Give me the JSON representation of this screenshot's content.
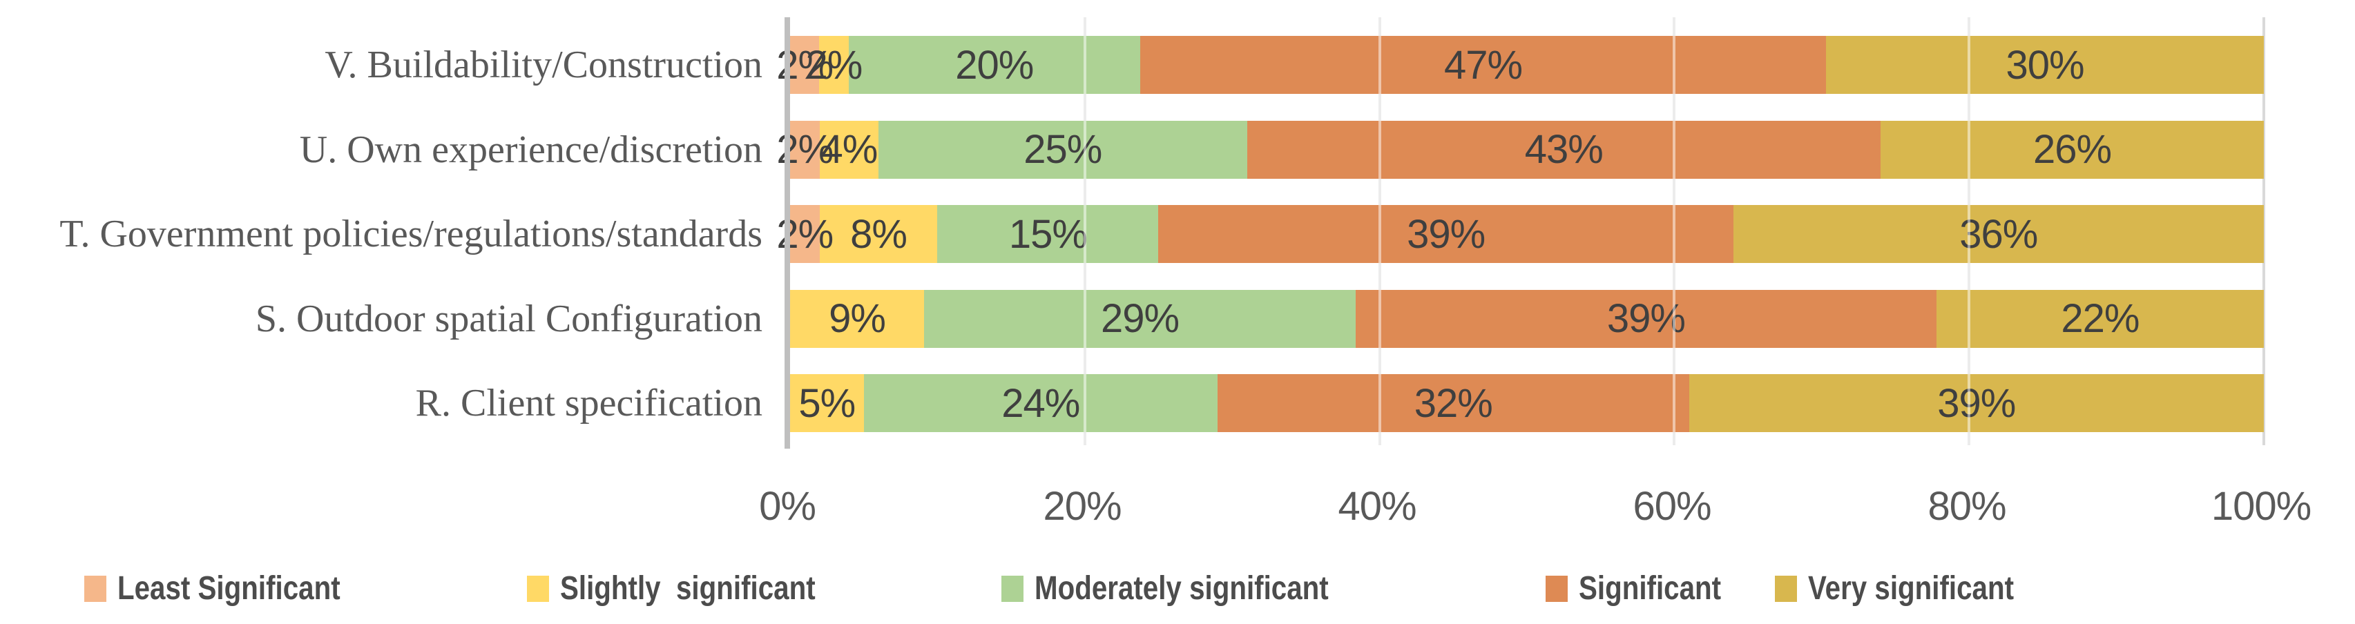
{
  "chart_data": {
    "type": "bar",
    "orientation": "horizontal-stacked",
    "title": "",
    "xlabel": "",
    "ylabel": "",
    "xlim": [
      0,
      100
    ],
    "grid": true,
    "legend_position": "bottom",
    "label_format": "percent",
    "categories": [
      "V. Buildability/Construction",
      "U. Own experience/discretion",
      "T. Government policies/regulations/standards",
      "S. Outdoor spatial Configuration",
      "R. Client specification"
    ],
    "series": [
      {
        "name": "Least Significant",
        "color": "#F5B78A",
        "values": [
          2,
          2,
          2,
          0,
          0
        ]
      },
      {
        "name": "Slightly  significant",
        "color": "#FFD966",
        "values": [
          2,
          4,
          8,
          9,
          5
        ]
      },
      {
        "name": "Moderately significant",
        "color": "#ADD294",
        "values": [
          20,
          25,
          15,
          29,
          24
        ]
      },
      {
        "name": "Significant",
        "color": "#DE8A54",
        "values": [
          47,
          43,
          39,
          39,
          32
        ]
      },
      {
        "name": "Very significant",
        "color": "#D8B74E",
        "values": [
          30,
          26,
          36,
          22,
          39
        ]
      }
    ],
    "data_labels": [
      [
        "2%",
        "2%",
        "20%",
        "47%",
        "30%"
      ],
      [
        "2%",
        "4%",
        "25%",
        "43%",
        "26%"
      ],
      [
        "2%",
        "8%",
        "15%",
        "39%",
        "36%"
      ],
      [
        "",
        "9%",
        "29%",
        "39%",
        "22%"
      ],
      [
        "",
        "5%",
        "24%",
        "32%",
        "39%"
      ]
    ],
    "x_ticks": [
      "0%",
      "20%",
      "40%",
      "60%",
      "80%",
      "100%"
    ]
  },
  "styles": {
    "gridline_color": "#D9D9D9",
    "axis_line_color": "#BFBFBF",
    "data_label_color": "#3F3F3F",
    "tick_label_color": "#595959",
    "category_label_color": "#595959",
    "legend_text_color": "#4C4C4C",
    "background": "#FFFFFF"
  }
}
